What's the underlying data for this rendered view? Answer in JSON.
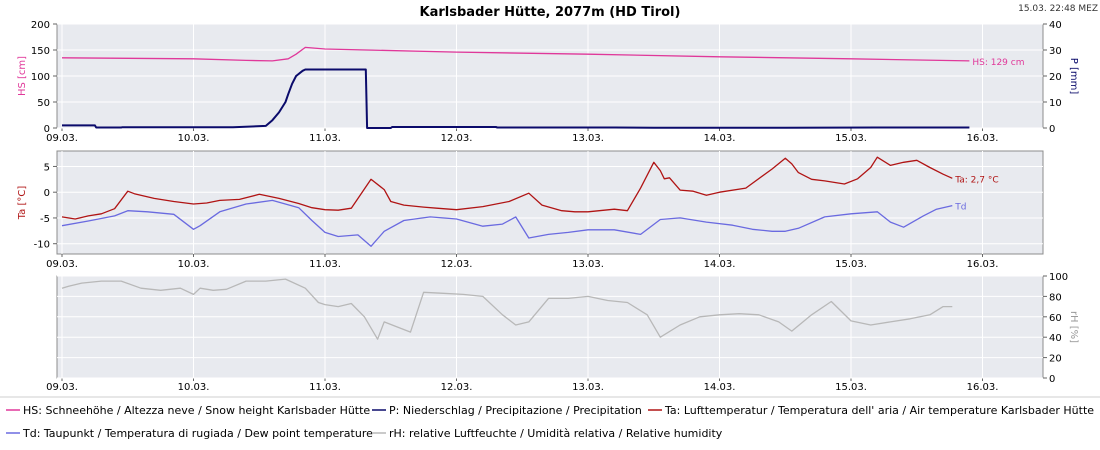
{
  "chart": {
    "title": "Karlsbader Hütte, 2077m (HD Tirol)",
    "timestamp": "15.03. 22:48 MEZ",
    "date_ticks": [
      "09.03.",
      "10.03.",
      "11.03.",
      "12.03.",
      "13.03.",
      "14.03.",
      "15.03.",
      "16.03."
    ]
  },
  "colors": {
    "hs": "#e0389a",
    "p": "#0b0b6b",
    "ta": "#b01414",
    "td": "#6a6ae0",
    "rh": "#b8b8b8"
  },
  "legend": [
    {
      "key": "hs",
      "label": "HS: Schneehöhe / Altezza neve / Snow height  Karlsbader Hütte"
    },
    {
      "key": "p",
      "label": "P: Niederschlag / Precipitazione / Precipitation"
    },
    {
      "key": "ta",
      "label": "Ta: Lufttemperatur / Temperatura dell' aria / Air temperature  Karlsbader Hütte"
    },
    {
      "key": "td",
      "label": "Td: Taupunkt / Temperatura di rugiada / Dew point temperature"
    },
    {
      "key": "rh",
      "label": "rH: relative Luftfeuchte / Umidità relativa / Relative humidity"
    }
  ],
  "chart_data": [
    {
      "type": "line",
      "xlabel": "",
      "ylabel": "HS [cm]",
      "ylabel_right": "P [mm]",
      "ylim": [
        0,
        200
      ],
      "ylim_right": [
        0,
        40
      ],
      "yticks": [
        "0",
        "50",
        "100",
        "150",
        "200"
      ],
      "yticks_right": [
        "0",
        "10",
        "20",
        "30",
        "40"
      ],
      "end_labels": {
        "hs": "HS: 129 cm"
      },
      "series": [
        {
          "key": "hs",
          "name": "HS",
          "axis": "left",
          "x": [
            0.0,
            0.5,
            1.0,
            1.4,
            1.6,
            1.72,
            1.78,
            1.85,
            2.0,
            3.0,
            4.0,
            5.0,
            6.0,
            6.9
          ],
          "y": [
            135,
            134,
            133,
            130,
            129,
            133,
            142,
            155,
            152,
            146,
            142,
            137,
            133,
            129
          ]
        },
        {
          "key": "p",
          "name": "P",
          "axis": "right",
          "x": [
            0.0,
            0.25,
            0.26,
            0.45,
            0.46,
            1.3,
            1.55,
            1.6,
            1.65,
            1.7,
            1.72,
            1.75,
            1.78,
            1.83,
            1.85,
            2.3,
            2.31,
            2.32,
            2.5,
            2.51,
            3.3,
            3.31,
            3.5,
            4.2,
            4.5,
            5.5,
            6.2,
            6.9
          ],
          "y": [
            1.0,
            1.0,
            0.2,
            0.2,
            0.3,
            0.3,
            0.8,
            3.0,
            6.0,
            10.0,
            13.0,
            17.0,
            20.0,
            22.0,
            22.5,
            22.5,
            22.5,
            0.0,
            0.0,
            0.4,
            0.4,
            0.2,
            0.2,
            0.2,
            0.1,
            0.1,
            0.2,
            0.2
          ]
        }
      ]
    },
    {
      "type": "line",
      "xlabel": "",
      "ylabel": "Ta [°C]",
      "ylim": [
        -12,
        8
      ],
      "yticks": [
        "-10",
        "-5",
        "0",
        "5"
      ],
      "end_labels": {
        "ta": "Ta: 2,7 °C",
        "td": "Td"
      },
      "series": [
        {
          "key": "ta",
          "name": "Ta",
          "axis": "left",
          "x": [
            0.0,
            0.1,
            0.2,
            0.3,
            0.4,
            0.5,
            0.55,
            0.7,
            0.85,
            1.0,
            1.1,
            1.2,
            1.35,
            1.5,
            1.65,
            1.8,
            1.9,
            2.0,
            2.1,
            2.2,
            2.35,
            2.45,
            2.5,
            2.6,
            2.75,
            2.85,
            3.0,
            3.2,
            3.4,
            3.55,
            3.65,
            3.8,
            3.9,
            4.0,
            4.2,
            4.3,
            4.4,
            4.5,
            4.55,
            4.58,
            4.62,
            4.7,
            4.8,
            4.9,
            5.0,
            5.2,
            5.4,
            5.5,
            5.55,
            5.6,
            5.7,
            5.8,
            5.95,
            6.05,
            6.15,
            6.2,
            6.3,
            6.4,
            6.5,
            6.6,
            6.7,
            6.77
          ],
          "y": [
            -4.8,
            -5.2,
            -4.6,
            -4.2,
            -3.2,
            0.2,
            -0.3,
            -1.2,
            -1.8,
            -2.3,
            -2.1,
            -1.6,
            -1.4,
            -0.4,
            -1.2,
            -2.2,
            -3.0,
            -3.4,
            -3.5,
            -3.1,
            2.5,
            0.5,
            -1.8,
            -2.5,
            -2.9,
            -3.1,
            -3.4,
            -2.8,
            -1.8,
            -0.2,
            -2.5,
            -3.6,
            -3.8,
            -3.8,
            -3.3,
            -3.6,
            0.8,
            5.8,
            4.2,
            2.6,
            2.8,
            0.4,
            0.2,
            -0.6,
            0.0,
            0.8,
            4.5,
            6.6,
            5.5,
            3.8,
            2.5,
            2.2,
            1.6,
            2.6,
            4.8,
            6.8,
            5.2,
            5.8,
            6.2,
            4.8,
            3.5,
            2.7
          ]
        },
        {
          "key": "td",
          "name": "Td",
          "axis": "left",
          "x": [
            0.0,
            0.2,
            0.4,
            0.5,
            0.65,
            0.85,
            1.0,
            1.05,
            1.2,
            1.4,
            1.6,
            1.8,
            1.9,
            2.0,
            2.1,
            2.25,
            2.35,
            2.45,
            2.6,
            2.8,
            3.0,
            3.2,
            3.35,
            3.45,
            3.55,
            3.7,
            3.85,
            4.0,
            4.2,
            4.4,
            4.55,
            4.7,
            4.9,
            5.1,
            5.25,
            5.4,
            5.5,
            5.6,
            5.8,
            6.0,
            6.2,
            6.3,
            6.4,
            6.55,
            6.65,
            6.77
          ],
          "y": [
            -6.5,
            -5.6,
            -4.6,
            -3.6,
            -3.8,
            -4.3,
            -7.2,
            -6.5,
            -3.8,
            -2.3,
            -1.6,
            -3.0,
            -5.5,
            -7.8,
            -8.6,
            -8.3,
            -10.5,
            -7.6,
            -5.5,
            -4.8,
            -5.2,
            -6.6,
            -6.2,
            -4.8,
            -8.9,
            -8.2,
            -7.8,
            -7.3,
            -7.3,
            -8.2,
            -5.3,
            -5.0,
            -5.8,
            -6.4,
            -7.2,
            -7.6,
            -7.6,
            -7.0,
            -4.8,
            -4.2,
            -3.8,
            -5.8,
            -6.8,
            -4.6,
            -3.3,
            -2.6
          ]
        }
      ]
    },
    {
      "type": "line",
      "xlabel": "",
      "ylabel_right": "rH [%]",
      "ylim": [
        0,
        100
      ],
      "yticks_right": [
        "0",
        "20",
        "40",
        "60",
        "80",
        "100"
      ],
      "series": [
        {
          "key": "rh",
          "name": "rH",
          "axis": "right",
          "x": [
            0.0,
            0.05,
            0.15,
            0.3,
            0.45,
            0.6,
            0.75,
            0.9,
            1.0,
            1.05,
            1.15,
            1.25,
            1.4,
            1.55,
            1.7,
            1.85,
            1.95,
            2.0,
            2.1,
            2.2,
            2.3,
            2.4,
            2.45,
            2.55,
            2.65,
            2.75,
            2.9,
            3.05,
            3.2,
            3.35,
            3.45,
            3.55,
            3.7,
            3.85,
            4.0,
            4.15,
            4.3,
            4.45,
            4.55,
            4.7,
            4.85,
            5.0,
            5.15,
            5.3,
            5.45,
            5.55,
            5.7,
            5.85,
            6.0,
            6.15,
            6.3,
            6.45,
            6.6,
            6.7,
            6.77
          ],
          "y": [
            88,
            90,
            93,
            95,
            95,
            88,
            86,
            88,
            82,
            88,
            86,
            87,
            95,
            95,
            97,
            88,
            74,
            72,
            70,
            73,
            60,
            38,
            55,
            50,
            45,
            84,
            83,
            82,
            80,
            62,
            52,
            55,
            78,
            78,
            80,
            76,
            74,
            62,
            40,
            52,
            60,
            62,
            63,
            62,
            55,
            46,
            62,
            75,
            56,
            52,
            55,
            58,
            62,
            70,
            70
          ]
        }
      ]
    }
  ]
}
